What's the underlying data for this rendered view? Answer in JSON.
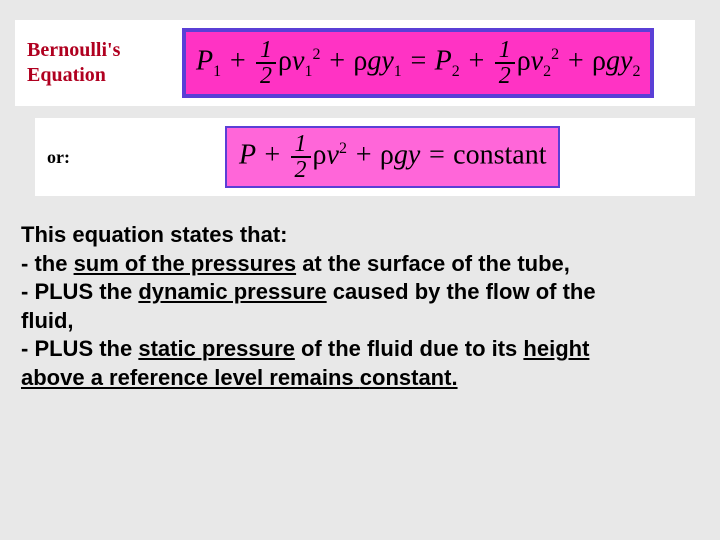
{
  "title": {
    "line1": "Bernoulli's",
    "line2": "Equation"
  },
  "or_label": "or:",
  "equation1": {
    "P": "P",
    "sub1": "1",
    "plus": "+",
    "frac_num": "1",
    "frac_den": "2",
    "rho": "ρ",
    "v": "v",
    "sq": "2",
    "g": "g",
    "y": "y",
    "eq": "=",
    "sub2": "2"
  },
  "equation2": {
    "P": "P",
    "plus": "+",
    "frac_num": "1",
    "frac_den": "2",
    "rho": "ρ",
    "v": "v",
    "sq": "2",
    "g": "g",
    "y": "y",
    "eq": "=",
    "const": "constant"
  },
  "body": {
    "l1a": "This equation states that:",
    "l2a": "- the ",
    "l2b": "sum of the pressures",
    "l2c": " at the surface of the tube,",
    "l3a": "- PLUS the ",
    "l3b": "dynamic pressure",
    "l3c": " caused by the flow of the",
    "l4a": "fluid,",
    "l5a": "- PLUS the ",
    "l5b": "static pressure",
    "l5c": " of the fluid due to its ",
    "l5d": "height",
    "l6a": "above a reference level remains ",
    "l6b": "constant."
  },
  "colors": {
    "bg": "#e8e8e8",
    "card": "#ffffff",
    "title": "#b00020",
    "border": "#5a3fd6",
    "eq_bg1": "#ff33c4",
    "eq_bg2": "#ff66d9"
  }
}
